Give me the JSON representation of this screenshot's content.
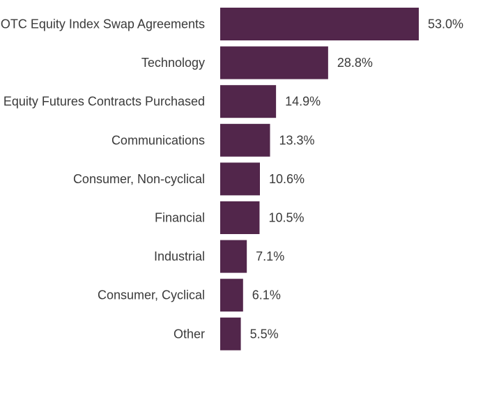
{
  "chart_data": {
    "type": "bar",
    "orientation": "horizontal",
    "title": "",
    "xlabel": "",
    "ylabel": "",
    "categories": [
      "OTC Equity Index Swap Agreements",
      "Technology",
      "Equity Futures Contracts Purchased",
      "Communications",
      "Consumer, Non-cyclical",
      "Financial",
      "Industrial",
      "Consumer, Cyclical",
      "Other"
    ],
    "values": [
      53.0,
      28.8,
      14.9,
      13.3,
      10.6,
      10.5,
      7.1,
      6.1,
      5.5
    ],
    "value_labels": [
      "53.0%",
      "28.8%",
      "14.9%",
      "13.3%",
      "10.6%",
      "10.5%",
      "7.1%",
      "6.1%",
      "5.5%"
    ],
    "unit": "%",
    "xlim": [
      0,
      53.0
    ],
    "grid": false,
    "legend": "none",
    "bar_color": "#52264b"
  }
}
